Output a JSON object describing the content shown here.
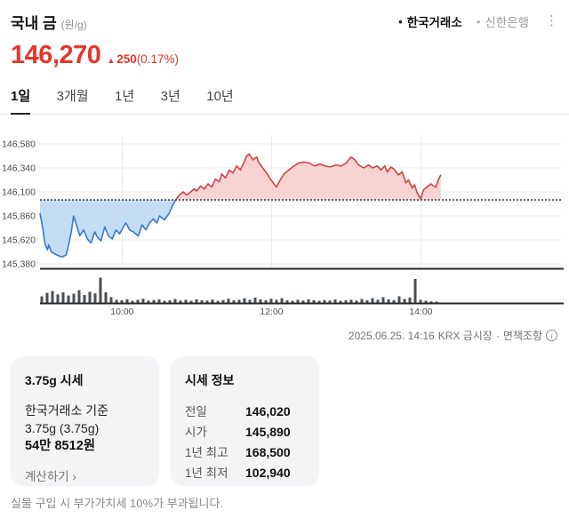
{
  "header": {
    "title": "국내 금",
    "unit": "(원/g)",
    "bullet": "•",
    "sources": [
      {
        "label": "한국거래소",
        "active": true
      },
      {
        "label": "신한은행",
        "active": false
      }
    ],
    "menu_icon": "⋮"
  },
  "price": {
    "current": "146,270",
    "arrow": "▲",
    "change": "250",
    "change_percent": "(0.17%)",
    "up_color": "#e5362b"
  },
  "tabs": [
    {
      "label": "1일",
      "active": true
    },
    {
      "label": "3개월",
      "active": false
    },
    {
      "label": "1년",
      "active": false
    },
    {
      "label": "3년",
      "active": false
    },
    {
      "label": "10년",
      "active": false
    }
  ],
  "chart_data": {
    "type": "area",
    "reference_value": 146020,
    "reference_label": "전일 종가 기준선",
    "y_axis": {
      "ticks": [
        {
          "v": 146580,
          "label": "146,580"
        },
        {
          "v": 146340,
          "label": "146,340"
        },
        {
          "v": 146100,
          "label": "146,100"
        },
        {
          "v": 145860,
          "label": "145,860"
        },
        {
          "v": 145620,
          "label": "145,620"
        },
        {
          "v": 145380,
          "label": "145,380"
        }
      ]
    },
    "x_axis": {
      "ticks": [
        {
          "t": 600,
          "label": "10:00"
        },
        {
          "t": 720,
          "label": "12:00"
        },
        {
          "t": 840,
          "label": "14:00"
        }
      ]
    },
    "series": [
      [
        534,
        145890
      ],
      [
        536,
        145750
      ],
      [
        538,
        145580
      ],
      [
        540,
        145520
      ],
      [
        541,
        145570
      ],
      [
        543,
        145500
      ],
      [
        546,
        145480
      ],
      [
        549,
        145460
      ],
      [
        552,
        145450
      ],
      [
        555,
        145470
      ],
      [
        557,
        145570
      ],
      [
        559,
        145690
      ],
      [
        561,
        145860
      ],
      [
        563,
        145780
      ],
      [
        566,
        145660
      ],
      [
        569,
        145720
      ],
      [
        572,
        145630
      ],
      [
        575,
        145590
      ],
      [
        578,
        145700
      ],
      [
        580,
        145650
      ],
      [
        583,
        145610
      ],
      [
        586,
        145750
      ],
      [
        589,
        145660
      ],
      [
        592,
        145630
      ],
      [
        595,
        145720
      ],
      [
        598,
        145680
      ],
      [
        601,
        145750
      ],
      [
        603,
        145790
      ],
      [
        606,
        145720
      ],
      [
        609,
        145700
      ],
      [
        613,
        145660
      ],
      [
        616,
        145770
      ],
      [
        619,
        145720
      ],
      [
        622,
        145790
      ],
      [
        625,
        145830
      ],
      [
        628,
        145790
      ],
      [
        630,
        145860
      ],
      [
        634,
        145820
      ],
      [
        638,
        145890
      ],
      [
        640,
        145950
      ],
      [
        643,
        146020
      ],
      [
        646,
        146070
      ],
      [
        649,
        146100
      ],
      [
        652,
        146070
      ],
      [
        655,
        146100
      ],
      [
        658,
        146130
      ],
      [
        660,
        146110
      ],
      [
        663,
        146160
      ],
      [
        666,
        146130
      ],
      [
        669,
        146180
      ],
      [
        672,
        146150
      ],
      [
        675,
        146230
      ],
      [
        678,
        146200
      ],
      [
        680,
        146280
      ],
      [
        683,
        146240
      ],
      [
        686,
        146320
      ],
      [
        689,
        146290
      ],
      [
        692,
        146360
      ],
      [
        695,
        146320
      ],
      [
        698,
        146400
      ],
      [
        700,
        146460
      ],
      [
        702,
        146480
      ],
      [
        705,
        146420
      ],
      [
        708,
        146450
      ],
      [
        710,
        146390
      ],
      [
        713,
        146340
      ],
      [
        716,
        146290
      ],
      [
        719,
        146230
      ],
      [
        722,
        146180
      ],
      [
        724,
        146150
      ],
      [
        727,
        146220
      ],
      [
        730,
        146280
      ],
      [
        734,
        146320
      ],
      [
        738,
        146360
      ],
      [
        742,
        146390
      ],
      [
        746,
        146400
      ],
      [
        750,
        146390
      ],
      [
        755,
        146360
      ],
      [
        759,
        146380
      ],
      [
        763,
        146360
      ],
      [
        767,
        146350
      ],
      [
        772,
        146370
      ],
      [
        776,
        146360
      ],
      [
        780,
        146390
      ],
      [
        784,
        146450
      ],
      [
        787,
        146420
      ],
      [
        790,
        146370
      ],
      [
        794,
        146340
      ],
      [
        798,
        146370
      ],
      [
        801,
        146340
      ],
      [
        805,
        146360
      ],
      [
        808,
        146320
      ],
      [
        811,
        146360
      ],
      [
        813,
        146300
      ],
      [
        816,
        146350
      ],
      [
        819,
        146320
      ],
      [
        822,
        146270
      ],
      [
        825,
        146300
      ],
      [
        828,
        146190
      ],
      [
        830,
        146220
      ],
      [
        833,
        146140
      ],
      [
        835,
        146170
      ],
      [
        837,
        146090
      ],
      [
        840,
        146030
      ],
      [
        842,
        146120
      ],
      [
        845,
        146150
      ],
      [
        848,
        146180
      ],
      [
        850,
        146160
      ],
      [
        852,
        146150
      ],
      [
        854,
        146220
      ],
      [
        856,
        146270
      ]
    ],
    "volume": {
      "start_t": 535.4,
      "step_t": 4.286,
      "heights": [
        25,
        38,
        45,
        32,
        40,
        28,
        35,
        48,
        30,
        42,
        36,
        95,
        40,
        22,
        12,
        10,
        14,
        8,
        12,
        16,
        9,
        11,
        13,
        8,
        10,
        15,
        9,
        12,
        8,
        14,
        10,
        9,
        13,
        8,
        11,
        16,
        10,
        12,
        18,
        12,
        20,
        14,
        10,
        16,
        12,
        18,
        10,
        8,
        12,
        9,
        14,
        10,
        8,
        11,
        9,
        13,
        8,
        10,
        12,
        9,
        15,
        10,
        18,
        12,
        22,
        14,
        10,
        25,
        15,
        20,
        90,
        12,
        8,
        6,
        5
      ]
    },
    "colors": {
      "up_line": "#cc4641",
      "up_fill": "#f7d2d3",
      "down_line": "#3a78c9",
      "down_fill": "#c2ddf4",
      "reference": "#3c3c3c",
      "volume": "#4a4e52",
      "axis": "#26282a",
      "grid": "#ededed"
    }
  },
  "meta": {
    "datetime": "2025.06.25. 14:16",
    "market": "KRX 금시장",
    "separator": "·",
    "disclaimer": "면책조항",
    "info_icon": "i"
  },
  "cards": {
    "unit_price": {
      "title": "3.75g 시세",
      "line1": "한국거래소 기준",
      "line2": "3.75g (3.75g)",
      "price": "54만 8512원",
      "link": "계산하기 ›"
    },
    "quote_info": {
      "title": "시세 정보",
      "rows": [
        {
          "label": "전일",
          "value": "146,020"
        },
        {
          "label": "시가",
          "value": "145,890"
        },
        {
          "label": "1년 최고",
          "value": "168,500"
        },
        {
          "label": "1년 최저",
          "value": "102,940"
        }
      ]
    }
  },
  "footer": {
    "notice": "실물 구입 시 부가가치세 10%가 부과됩니다."
  }
}
